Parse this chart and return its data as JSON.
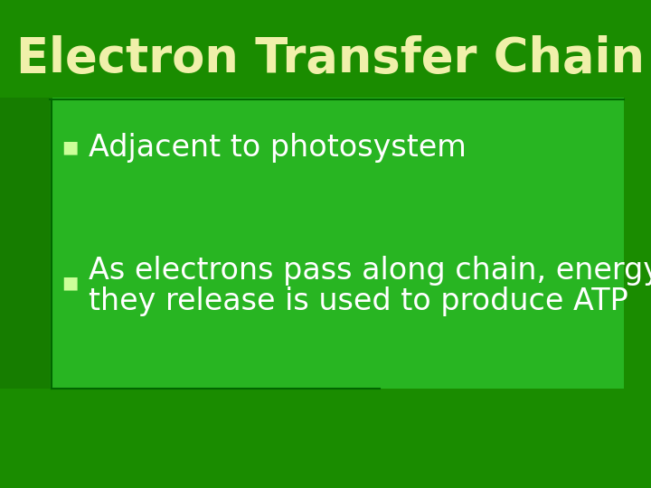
{
  "title": "Electron Transfer Chain",
  "bullet1": "Adjacent to photosystem",
  "bullet2_line1": "As electrons pass along chain, energy",
  "bullet2_line2": "they release is used to produce ATP",
  "bullet_symbol": "■",
  "bg_color_main": "#1a8c00",
  "bg_color_panel": "#22aa00",
  "title_color": "#f0f0aa",
  "bullet_symbol_color": "#ccff99",
  "bullet_text_color": "#ffffff",
  "title_fontsize": 38,
  "bullet_fontsize": 24,
  "title_font_weight": "bold",
  "line_color": "#006600",
  "panel_facecolor": "#2ec42e"
}
